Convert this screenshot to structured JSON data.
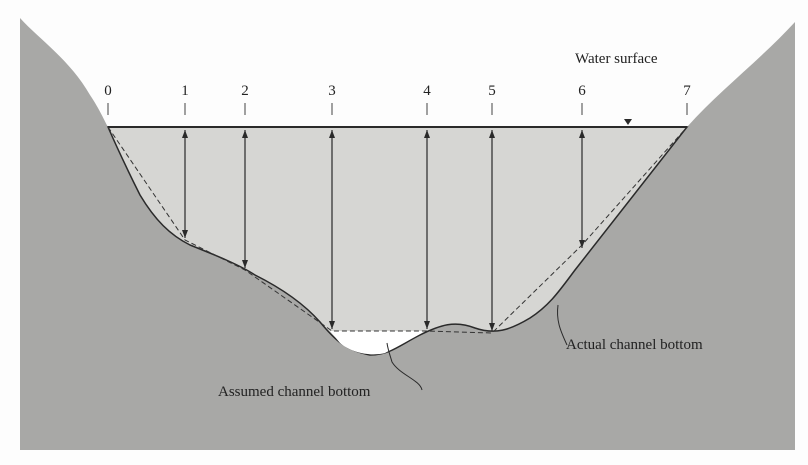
{
  "labels": {
    "water_surface": "Water surface",
    "actual_bottom": "Actual channel bottom",
    "assumed_bottom": "Assumed channel bottom"
  },
  "stations": [
    "0",
    "1",
    "2",
    "3",
    "4",
    "5",
    "6",
    "7"
  ],
  "colors": {
    "ground": "#a8a8a6",
    "water": "#d6d6d3",
    "line": "#2a2a2a"
  }
}
